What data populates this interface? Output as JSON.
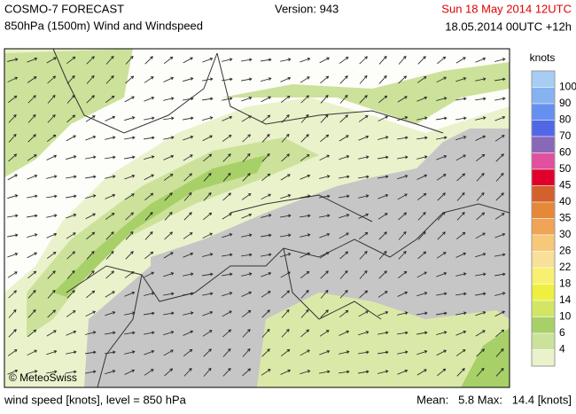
{
  "header": {
    "title": "COSMO-7 FORECAST",
    "subtitle": "850hPa (1500m) Wind and Windspeed",
    "version": "Version: 943",
    "valid": "Sun 18 May 2014 12UTC",
    "run": "18.05.2014 00UTC +12h"
  },
  "map": {
    "credit": "© MeteoSwiss"
  },
  "legend": {
    "unit": "knots",
    "labels": [
      "100",
      "90",
      "80",
      "70",
      "60",
      "50",
      "45",
      "40",
      "35",
      "30",
      "26",
      "22",
      "18",
      "14",
      "10",
      "6",
      "4"
    ],
    "colors": [
      "#a8cdf5",
      "#86b2f2",
      "#6690f0",
      "#5068e6",
      "#8a68b8",
      "#e0509e",
      "#e0002c",
      "#d4602c",
      "#e5883a",
      "#f0a458",
      "#f6c878",
      "#f8e098",
      "#f8f070",
      "#eef040",
      "#d2e664",
      "#a8d068",
      "#cce29a",
      "#eaf2cc"
    ]
  },
  "footer": {
    "left": "wind speed [knots], level = 850 hPa",
    "stats": "Mean:   5.8 Max:   14.4 [knots]"
  }
}
